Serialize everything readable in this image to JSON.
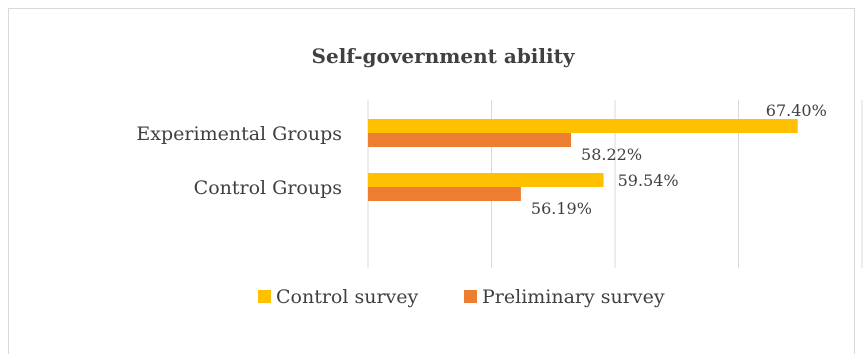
{
  "chart_data": {
    "type": "bar",
    "orientation": "horizontal",
    "title": "Self-government ability",
    "categories": [
      "Experimental Groups",
      "Control Groups"
    ],
    "series": [
      {
        "name": "Control survey",
        "values": [
          67.4,
          59.54
        ],
        "labels": [
          "67.40%",
          "59.54%"
        ],
        "color": "#FFC000"
      },
      {
        "name": "Preliminary survey",
        "values": [
          58.22,
          56.19
        ],
        "labels": [
          "58.22%",
          "56.19%"
        ],
        "color": "#ED7D31"
      }
    ],
    "xlim": [
      50,
      70
    ],
    "grid": true,
    "legend": "bottom",
    "gridline_color": "#d9d9d9"
  }
}
